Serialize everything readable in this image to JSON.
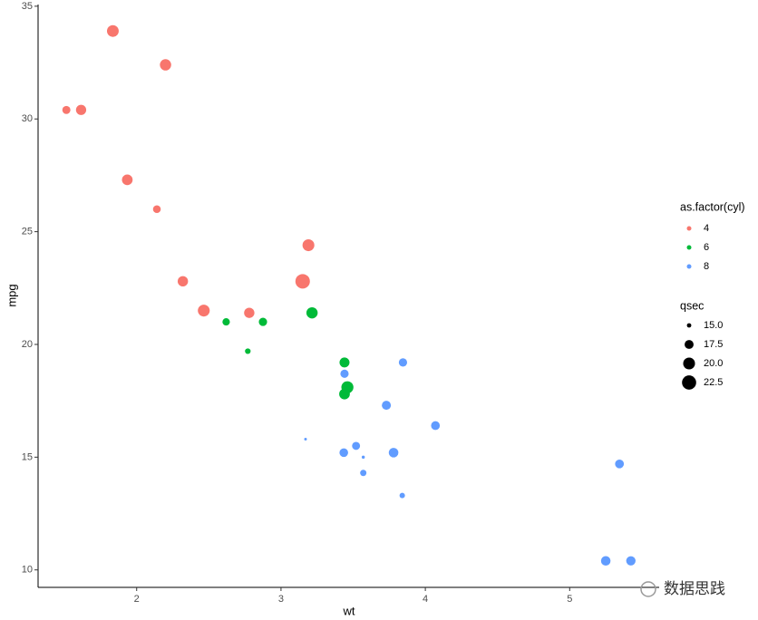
{
  "chart_data": {
    "type": "scatter",
    "x_label": "wt",
    "y_label": "mpg",
    "xlim": [
      1.317,
      5.62
    ],
    "ylim": [
      9.225,
      35.075
    ],
    "xticks": [
      2,
      3,
      4,
      5
    ],
    "yticks": [
      10,
      15,
      20,
      25,
      30,
      35
    ],
    "color_legend_title": "as.factor(cyl)",
    "size_legend_title": "qsec",
    "size_legend": [
      {
        "value": 15,
        "label": "15.0"
      },
      {
        "value": 17.5,
        "label": "17.5"
      },
      {
        "value": 20,
        "label": "20.0"
      },
      {
        "value": 22.5,
        "label": "22.5"
      }
    ],
    "series": [
      {
        "name": "4",
        "color": "#F8766D",
        "x": [
          2.32,
          3.19,
          3.15,
          2.2,
          1.615,
          1.835,
          2.465,
          1.935,
          2.14,
          1.513,
          2.78
        ],
        "values": [
          22.8,
          24.4,
          22.8,
          32.4,
          30.4,
          33.9,
          21.5,
          27.3,
          26.0,
          30.4,
          21.4
        ],
        "sizes": [
          18.61,
          20.0,
          22.9,
          19.47,
          18.52,
          19.9,
          20.01,
          18.9,
          16.7,
          16.9,
          18.6
        ]
      },
      {
        "name": "6",
        "color": "#00BA38",
        "x": [
          2.62,
          2.875,
          3.215,
          3.46,
          3.44,
          3.44,
          2.77
        ],
        "values": [
          21.0,
          21.0,
          21.4,
          18.1,
          19.2,
          17.8,
          19.7
        ],
        "sizes": [
          16.46,
          17.02,
          19.44,
          20.22,
          18.3,
          18.9,
          15.5
        ]
      },
      {
        "name": "8",
        "color": "#619CFF",
        "x": [
          3.44,
          3.57,
          4.07,
          3.73,
          3.78,
          5.25,
          5.424,
          5.345,
          3.52,
          3.435,
          3.84,
          3.845,
          3.17,
          3.57
        ],
        "values": [
          18.7,
          14.3,
          16.4,
          17.3,
          15.2,
          10.4,
          10.4,
          14.7,
          15.5,
          15.2,
          13.3,
          19.2,
          15.8,
          15.0
        ],
        "sizes": [
          17.02,
          15.84,
          17.4,
          17.6,
          18.0,
          17.98,
          17.82,
          17.42,
          16.87,
          17.3,
          15.41,
          17.05,
          14.5,
          14.6
        ]
      }
    ]
  },
  "watermark": "数据思践"
}
